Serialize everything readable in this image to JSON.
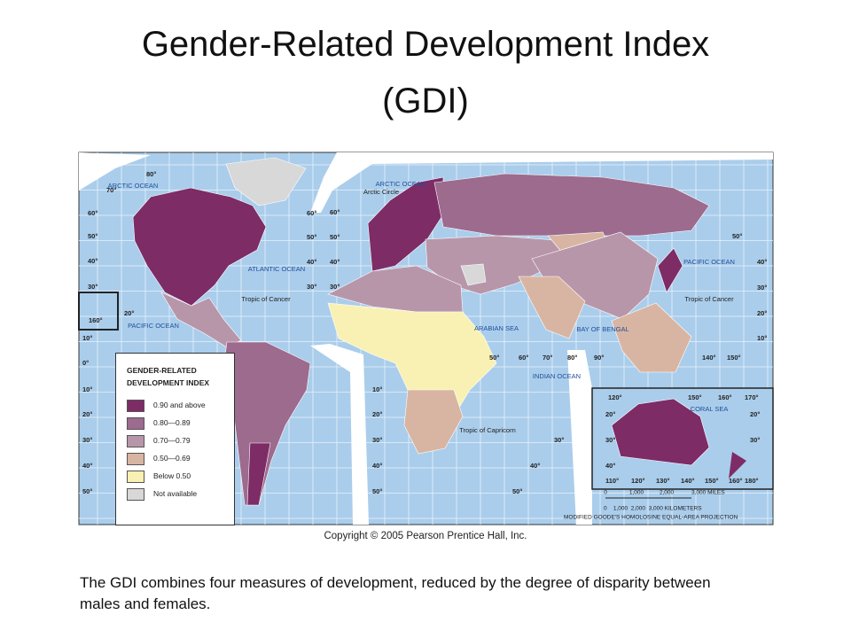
{
  "title": "Gender-Related Development Index (GDI)",
  "map": {
    "legend": {
      "title": "GENDER-RELATED DEVELOPMENT INDEX",
      "items": [
        {
          "label": "0.90 and above",
          "color": "#7d2c66"
        },
        {
          "label": "0.80—0.89",
          "color": "#9c6b8e"
        },
        {
          "label": "0.70—0.79",
          "color": "#b896aa"
        },
        {
          "label": "0.50—0.69",
          "color": "#d8b5a2"
        },
        {
          "label": "Below 0.50",
          "color": "#f9f1b3"
        },
        {
          "label": "Not available",
          "color": "#d8d8d8"
        }
      ]
    },
    "ocean_color": "#aacdeb",
    "labels": [
      "ARCTIC OCEAN",
      "ARCTIC OCEAN",
      "Arctic Circle",
      "ATLANTIC OCEAN",
      "Tropic of Cancer",
      "Tropic of Cancer",
      "PACIFIC OCEAN",
      "PACIFIC OCEAN",
      "ARABIAN SEA",
      "BAY OF BENGAL",
      "INDIAN OCEAN",
      "Tropic of Capricorn",
      "CORAL SEA"
    ],
    "degrees": [
      "80°",
      "70°",
      "60°",
      "50°",
      "40°",
      "30°",
      "20°",
      "10°",
      "0°",
      "10°",
      "20°",
      "30°",
      "40°",
      "50°",
      "60°",
      "50°",
      "40°",
      "30°",
      "160°",
      "60°",
      "50°",
      "40°",
      "30°",
      "50°",
      "40°",
      "30°",
      "20°",
      "10°",
      "50°",
      "60°",
      "70°",
      "80°",
      "90°",
      "140°",
      "150°",
      "10°",
      "20°",
      "30°",
      "40°",
      "50°",
      "30°",
      "40°",
      "50°",
      "120°",
      "150°",
      "160°",
      "170°",
      "20°",
      "30°",
      "40°",
      "20°",
      "30°",
      "110°",
      "120°",
      "130°",
      "140°",
      "150°",
      "160°",
      "180°"
    ],
    "scale": {
      "miles": [
        "0",
        "1,000",
        "2,000",
        "3,000 MILES"
      ],
      "kilometers": "0    1,000  2,000  3,000 KILOMETERS"
    },
    "projection": "MODIFIED GOODE'S HOMOLOSINE EQUAL-AREA PROJECTION",
    "copyright": "Copyright © 2005 Pearson Prentice Hall, Inc."
  },
  "caption": "The GDI combines four measures of development, reduced by the degree of disparity between males and females."
}
